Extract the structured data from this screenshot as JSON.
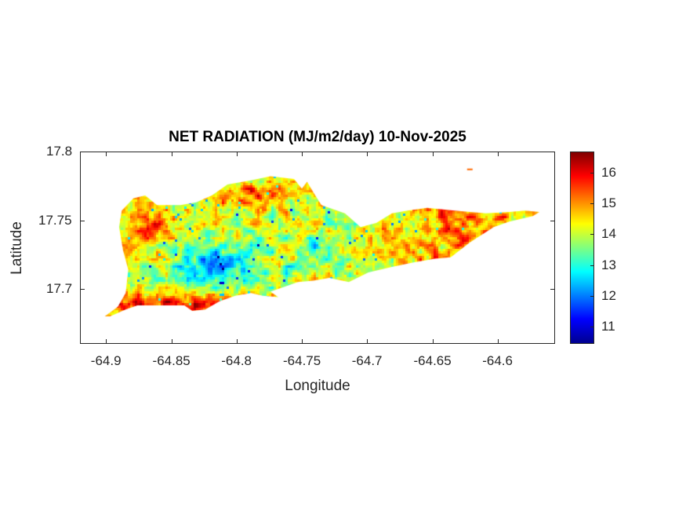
{
  "chart_data": {
    "type": "heatmap",
    "title": "NET RADIATION (MJ/m2/day) 10-Nov-2025",
    "xlabel": "Longitude",
    "ylabel": "Latitude",
    "xlim": [
      -64.92,
      -64.556
    ],
    "ylim": [
      17.66,
      17.8
    ],
    "xticks": [
      -64.9,
      -64.85,
      -64.8,
      -64.75,
      -64.7,
      -64.65,
      -64.6
    ],
    "xtick_labels": [
      "-64.9",
      "-64.85",
      "-64.8",
      "-64.75",
      "-64.7",
      "-64.65",
      "-64.6"
    ],
    "yticks": [
      17.7,
      17.75,
      17.8
    ],
    "ytick_labels": [
      "17.7",
      "17.75",
      "17.8"
    ],
    "colormap": "jet",
    "clim": [
      10.44,
      16.69
    ],
    "colorbar_ticks": [
      11,
      12,
      13,
      14,
      15,
      16
    ],
    "colorbar_labels": [
      "11",
      "12",
      "13",
      "14",
      "15",
      "16"
    ],
    "grid": false,
    "island_outline_lonlat": [
      [
        -64.901,
        17.68
      ],
      [
        -64.891,
        17.687
      ],
      [
        -64.885,
        17.697
      ],
      [
        -64.883,
        17.714
      ],
      [
        -64.887,
        17.728
      ],
      [
        -64.89,
        17.745
      ],
      [
        -64.888,
        17.757
      ],
      [
        -64.879,
        17.766
      ],
      [
        -64.87,
        17.768
      ],
      [
        -64.861,
        17.761
      ],
      [
        -64.843,
        17.761
      ],
      [
        -64.831,
        17.763
      ],
      [
        -64.819,
        17.768
      ],
      [
        -64.807,
        17.776
      ],
      [
        -64.789,
        17.779
      ],
      [
        -64.774,
        17.782
      ],
      [
        -64.756,
        17.78
      ],
      [
        -64.75,
        17.773
      ],
      [
        -64.746,
        17.778
      ],
      [
        -64.741,
        17.77
      ],
      [
        -64.735,
        17.761
      ],
      [
        -64.717,
        17.755
      ],
      [
        -64.705,
        17.745
      ],
      [
        -64.693,
        17.748
      ],
      [
        -64.681,
        17.755
      ],
      [
        -64.669,
        17.757
      ],
      [
        -64.654,
        17.759
      ],
      [
        -64.633,
        17.757
      ],
      [
        -64.609,
        17.755
      ],
      [
        -64.591,
        17.756
      ],
      [
        -64.579,
        17.757
      ],
      [
        -64.568,
        17.756
      ],
      [
        -64.573,
        17.753
      ],
      [
        -64.591,
        17.749
      ],
      [
        -64.603,
        17.745
      ],
      [
        -64.621,
        17.734
      ],
      [
        -64.636,
        17.723
      ],
      [
        -64.648,
        17.722
      ],
      [
        -64.666,
        17.719
      ],
      [
        -64.681,
        17.716
      ],
      [
        -64.699,
        17.712
      ],
      [
        -64.714,
        17.705
      ],
      [
        -64.729,
        17.708
      ],
      [
        -64.741,
        17.706
      ],
      [
        -64.753,
        17.705
      ],
      [
        -64.765,
        17.701
      ],
      [
        -64.774,
        17.698
      ],
      [
        -64.768,
        17.694
      ],
      [
        -64.78,
        17.695
      ],
      [
        -64.789,
        17.697
      ],
      [
        -64.801,
        17.695
      ],
      [
        -64.813,
        17.691
      ],
      [
        -64.824,
        17.685
      ],
      [
        -64.834,
        17.684
      ],
      [
        -64.84,
        17.688
      ],
      [
        -64.861,
        17.688
      ],
      [
        -64.876,
        17.688
      ],
      [
        -64.885,
        17.685
      ],
      [
        -64.897,
        17.68
      ]
    ],
    "islet_lonlat": [
      -64.621,
      17.787
    ],
    "value_pattern": {
      "west_and_south_coast": 16,
      "central_west_interior": 12,
      "central": 13,
      "east": 15
    }
  }
}
